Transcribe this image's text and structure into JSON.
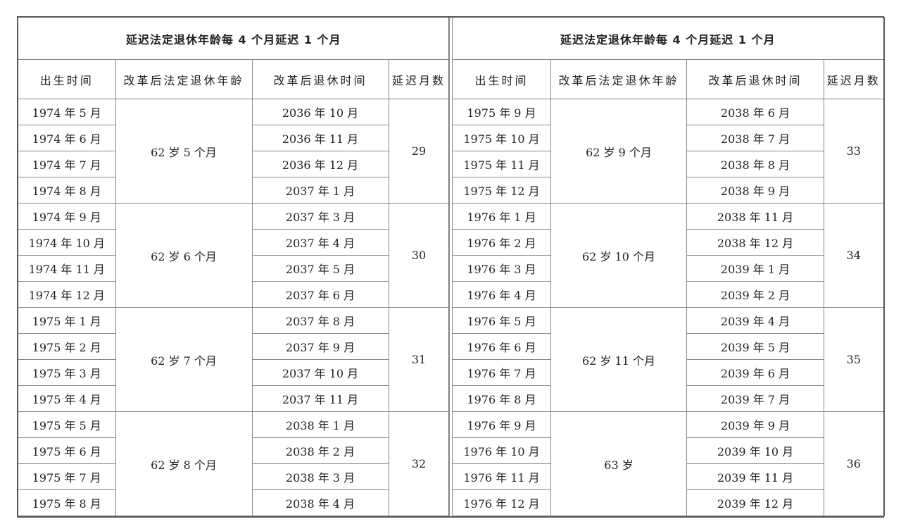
{
  "tables": [
    {
      "title": "延迟法定退休年龄每 4 个月延迟 1 个月",
      "columns": [
        "出生时间",
        "改革后法定退休年龄",
        "改革后退休时间",
        "延迟月数"
      ],
      "groups": [
        {
          "age": "62 岁 5 个月",
          "months": "29",
          "rows": [
            [
              "1974 年 5 月",
              "2036 年 10 月"
            ],
            [
              "1974 年 6 月",
              "2036 年 11 月"
            ],
            [
              "1974 年 7 月",
              "2036 年 12 月"
            ],
            [
              "1974 年 8 月",
              "2037 年 1 月"
            ]
          ]
        },
        {
          "age": "62 岁 6 个月",
          "months": "30",
          "rows": [
            [
              "1974 年 9 月",
              "2037 年 3 月"
            ],
            [
              "1974 年 10 月",
              "2037 年 4 月"
            ],
            [
              "1974 年 11 月",
              "2037 年 5 月"
            ],
            [
              "1974 年 12 月",
              "2037 年 6 月"
            ]
          ]
        },
        {
          "age": "62 岁 7 个月",
          "months": "31",
          "rows": [
            [
              "1975 年 1 月",
              "2037 年 8 月"
            ],
            [
              "1975 年 2 月",
              "2037 年 9 月"
            ],
            [
              "1975 年 3 月",
              "2037 年 10 月"
            ],
            [
              "1975 年 4 月",
              "2037 年 11 月"
            ]
          ]
        },
        {
          "age": "62 岁 8 个月",
          "months": "32",
          "rows": [
            [
              "1975 年 5 月",
              "2038 年 1 月"
            ],
            [
              "1975 年 6 月",
              "2038 年 2 月"
            ],
            [
              "1975 年 7 月",
              "2038 年 3 月"
            ],
            [
              "1975 年 8 月",
              "2038 年 4 月"
            ]
          ]
        }
      ]
    },
    {
      "title": "延迟法定退休年龄每 4 个月延迟 1 个月",
      "columns": [
        "出生时间",
        "改革后法定退休年龄",
        "改革后退休时间",
        "延迟月数"
      ],
      "groups": [
        {
          "age": "62 岁 9 个月",
          "months": "33",
          "rows": [
            [
              "1975 年 9 月",
              "2038 年 6 月"
            ],
            [
              "1975 年 10 月",
              "2038 年 7 月"
            ],
            [
              "1975 年 11 月",
              "2038 年 8 月"
            ],
            [
              "1975 年 12 月",
              "2038 年 9 月"
            ]
          ]
        },
        {
          "age": "62 岁 10 个月",
          "months": "34",
          "rows": [
            [
              "1976 年 1 月",
              "2038 年 11 月"
            ],
            [
              "1976 年 2 月",
              "2038 年 12 月"
            ],
            [
              "1976 年 3 月",
              "2039 年 1 月"
            ],
            [
              "1976 年 4 月",
              "2039 年 2 月"
            ]
          ]
        },
        {
          "age": "62 岁 11 个月",
          "months": "35",
          "rows": [
            [
              "1976 年 5 月",
              "2039 年 4 月"
            ],
            [
              "1976 年 6 月",
              "2039 年 5 月"
            ],
            [
              "1976 年 7 月",
              "2039 年 6 月"
            ],
            [
              "1976 年 8 月",
              "2039 年 7 月"
            ]
          ]
        },
        {
          "age": "63 岁",
          "months": "36",
          "rows": [
            [
              "1976 年 9 月",
              "2039 年 9 月"
            ],
            [
              "1976 年 10 月",
              "2039 年 10 月"
            ],
            [
              "1976 年 11 月",
              "2039 年 11 月"
            ],
            [
              "1976 年 12 月",
              "2039 年 12 月"
            ]
          ]
        }
      ]
    }
  ]
}
